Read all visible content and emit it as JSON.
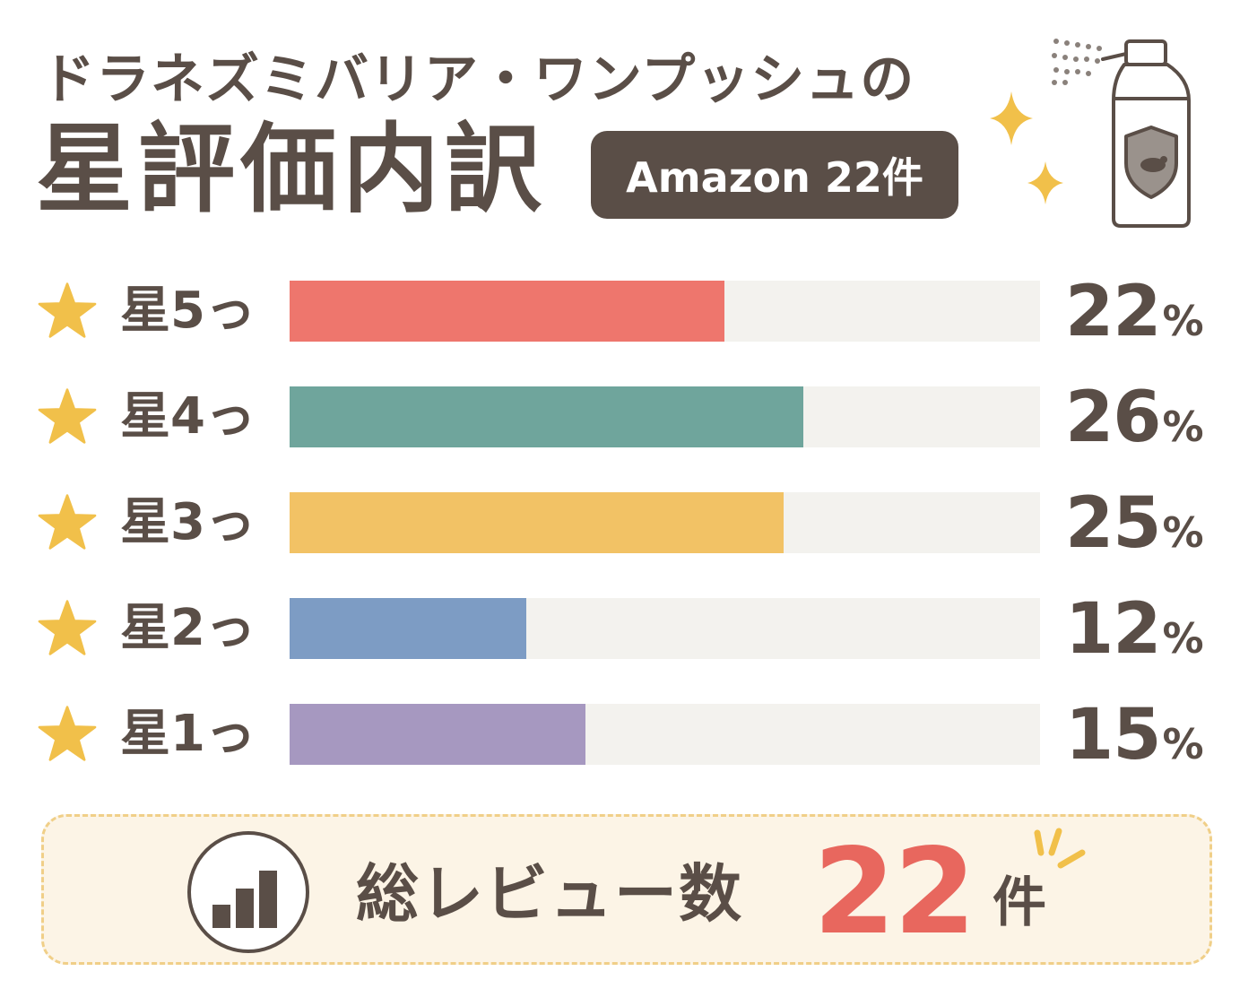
{
  "header": {
    "title_line1": "ドラネズミバリア・ワンプッシュの",
    "title_line2": "星評価内訳",
    "badge": "Amazon 22件"
  },
  "chart_data": {
    "type": "bar",
    "orientation": "horizontal",
    "categories": [
      "星5っ",
      "星4っ",
      "星3っ",
      "星2っ",
      "星1っ"
    ],
    "values": [
      22,
      26,
      25,
      12,
      15
    ],
    "unit": "%",
    "xlim": [
      0,
      38
    ],
    "colors": [
      "#ee766d",
      "#6fa59c",
      "#f2c265",
      "#7d9cc4",
      "#a698c0"
    ],
    "track_color": "#f3f2ee",
    "grid": false
  },
  "total": {
    "label": "総レビュー数",
    "value": "22",
    "unit": "件"
  },
  "icons": {
    "star": "star-icon",
    "spray": "spray-can-icon",
    "chart": "bar-chart-icon",
    "sparkle": "sparkle-icon"
  },
  "colors": {
    "text": "#5a4e47",
    "star": "#f1c04a",
    "accent_red": "#e8675e",
    "box_bg": "#fcf4e6",
    "box_border": "#f0cf88"
  }
}
